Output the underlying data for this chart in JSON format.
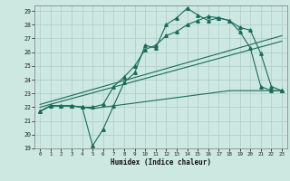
{
  "xlabel": "Humidex (Indice chaleur)",
  "bg_color": "#cce8e0",
  "grid_color": "#aacccc",
  "line_color": "#1a6b5a",
  "xlim": [
    -0.5,
    23.5
  ],
  "ylim": [
    19,
    29.4
  ],
  "xticks": [
    0,
    1,
    2,
    3,
    4,
    5,
    6,
    7,
    8,
    9,
    10,
    11,
    12,
    13,
    14,
    15,
    16,
    17,
    18,
    19,
    20,
    21,
    22,
    23
  ],
  "yticks": [
    19,
    20,
    21,
    22,
    23,
    24,
    25,
    26,
    27,
    28,
    29
  ],
  "curve_jagged_x": [
    0,
    1,
    2,
    3,
    4,
    5,
    6,
    7,
    8,
    9,
    10,
    11,
    12,
    13,
    14,
    15,
    16,
    17,
    18,
    19,
    20,
    21,
    22,
    23
  ],
  "curve_jagged_y": [
    21.7,
    22.1,
    22.1,
    22.1,
    22.0,
    19.2,
    20.4,
    22.1,
    23.8,
    24.5,
    26.5,
    26.3,
    28.0,
    28.5,
    29.2,
    28.7,
    28.3,
    28.5,
    28.3,
    27.8,
    27.6,
    25.9,
    23.5,
    23.2
  ],
  "curve_upper_x": [
    0,
    1,
    2,
    3,
    4,
    5,
    6,
    7,
    8,
    9,
    10,
    11,
    12,
    13,
    14,
    15,
    16,
    17,
    18,
    19,
    20,
    21,
    22,
    23
  ],
  "curve_upper_y": [
    21.7,
    22.1,
    22.1,
    22.1,
    22.0,
    22.0,
    22.2,
    23.5,
    24.2,
    25.0,
    26.2,
    26.5,
    27.2,
    27.5,
    28.0,
    28.3,
    28.6,
    28.5,
    28.3,
    27.5,
    26.3,
    23.5,
    23.2,
    23.2
  ],
  "curve_flat_x": [
    0,
    1,
    2,
    3,
    4,
    5,
    6,
    7,
    8,
    9,
    10,
    11,
    12,
    13,
    14,
    15,
    16,
    17,
    18,
    19,
    20,
    21,
    22,
    23
  ],
  "curve_flat_y": [
    21.7,
    22.1,
    22.1,
    22.1,
    22.0,
    21.9,
    22.0,
    22.1,
    22.2,
    22.3,
    22.4,
    22.5,
    22.6,
    22.7,
    22.8,
    22.9,
    23.0,
    23.1,
    23.2,
    23.2,
    23.2,
    23.2,
    23.2,
    23.2
  ],
  "line1_x": [
    0,
    23
  ],
  "line1_y": [
    22.0,
    26.8
  ],
  "line2_x": [
    0,
    23
  ],
  "line2_y": [
    22.2,
    27.2
  ],
  "markersize": 2.5
}
